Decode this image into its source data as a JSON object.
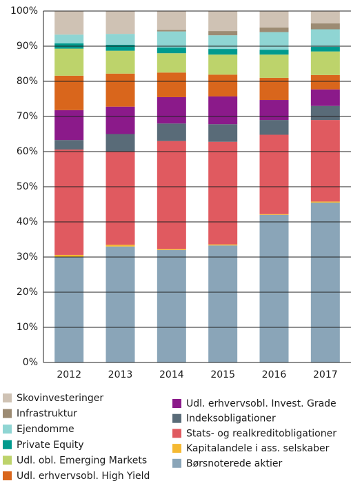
{
  "chart_data": {
    "type": "stacked_bar",
    "categories": [
      "2012",
      "2013",
      "2014",
      "2015",
      "2016",
      "2017"
    ],
    "series": [
      {
        "name": "Børsnoterede aktier",
        "color": "#8aa5b8",
        "values": [
          30,
          33,
          32,
          33.3,
          42,
          45.5
        ]
      },
      {
        "name": "Kapitalandele i ass. selskaber",
        "color": "#f5b932",
        "values": [
          0.6,
          0.5,
          0.3,
          0.3,
          0.2,
          0.3
        ]
      },
      {
        "name": "Stats- og realkreditobligationer",
        "color": "#e05a60",
        "values": [
          30,
          26.5,
          30.7,
          29.2,
          22.6,
          23.2
        ]
      },
      {
        "name": "Indeksobligationer",
        "color": "#596b78",
        "values": [
          2.7,
          5,
          5,
          5,
          4.2,
          4
        ]
      },
      {
        "name": "Udl. erhvervsobl. Invest. Grade",
        "color": "#8b1a8a",
        "values": [
          8.5,
          7.8,
          7.5,
          7.9,
          5.7,
          4.7
        ]
      },
      {
        "name": "Udl. erhvervsobl. High Yield",
        "color": "#d9661c",
        "values": [
          9.8,
          9.4,
          7,
          6.2,
          6.3,
          4.1
        ]
      },
      {
        "name": "Udl. obl. Emerging Markets",
        "color": "#bdd36b",
        "values": [
          7.7,
          6.5,
          5.5,
          5.7,
          6.6,
          6.7
        ]
      },
      {
        "name": "Private Equity",
        "color": "#009a8e",
        "values": [
          1.5,
          1.7,
          1.6,
          1.6,
          1.4,
          1.3
        ]
      },
      {
        "name": "Ejendomme",
        "color": "#8fd5d3",
        "values": [
          2.5,
          3.1,
          4.6,
          3.9,
          5,
          5
        ]
      },
      {
        "name": "Infrastruktur",
        "color": "#9c8b73",
        "values": [
          0,
          0,
          0.4,
          1.2,
          1.3,
          1.7
        ]
      },
      {
        "name": "Skovinvesteringer",
        "color": "#cfc2b4",
        "values": [
          6.7,
          6.5,
          5.4,
          5.7,
          4.7,
          3.5
        ]
      }
    ],
    "ylim": [
      0,
      100
    ],
    "yticks": [
      {
        "value": 0,
        "label": "0%"
      },
      {
        "value": 10,
        "label": "10%"
      },
      {
        "value": 20,
        "label": "20%"
      },
      {
        "value": 30,
        "label": "30%"
      },
      {
        "value": 40,
        "label": "40%"
      },
      {
        "value": 50,
        "label": "50%"
      },
      {
        "value": 60,
        "label": "60%"
      },
      {
        "value": 70,
        "label": "70%"
      },
      {
        "value": 80,
        "label": "80%"
      },
      {
        "value": 90,
        "label": "90%"
      },
      {
        "value": 100,
        "label": "100%"
      }
    ],
    "grid": true
  }
}
